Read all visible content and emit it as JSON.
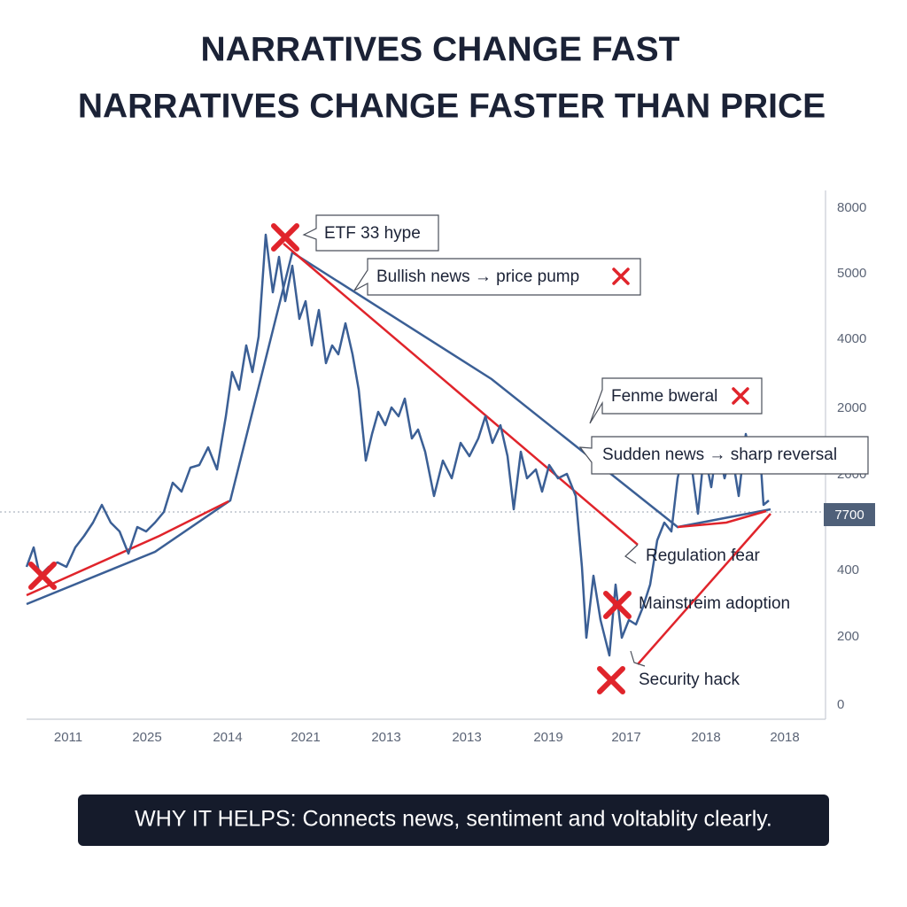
{
  "title": {
    "line1": "NARRATIVES CHANGE FAST",
    "line2": "NARRATIVES CHANGE FASTER THAN PRICE"
  },
  "axis": {
    "y_labels": [
      "8000",
      "5000",
      "4000",
      "2000",
      "2000",
      "400",
      "200",
      "0"
    ],
    "x_labels": [
      "2011",
      "2025",
      "2014",
      "2021",
      "2013",
      "2013",
      "2019",
      "2017",
      "2018",
      "2018"
    ],
    "marker_label": "7700"
  },
  "callouts": [
    "ETF 33 hype",
    "Bullish news → price pump",
    "Fenme bweral",
    "Sudden news → sharp reversal"
  ],
  "annotations": [
    "Regulation fear",
    "Mainstreim adoption",
    "Security hack"
  ],
  "footer": "WHY IT HELPS: Connects news, sentiment and voltablity clearly."
}
